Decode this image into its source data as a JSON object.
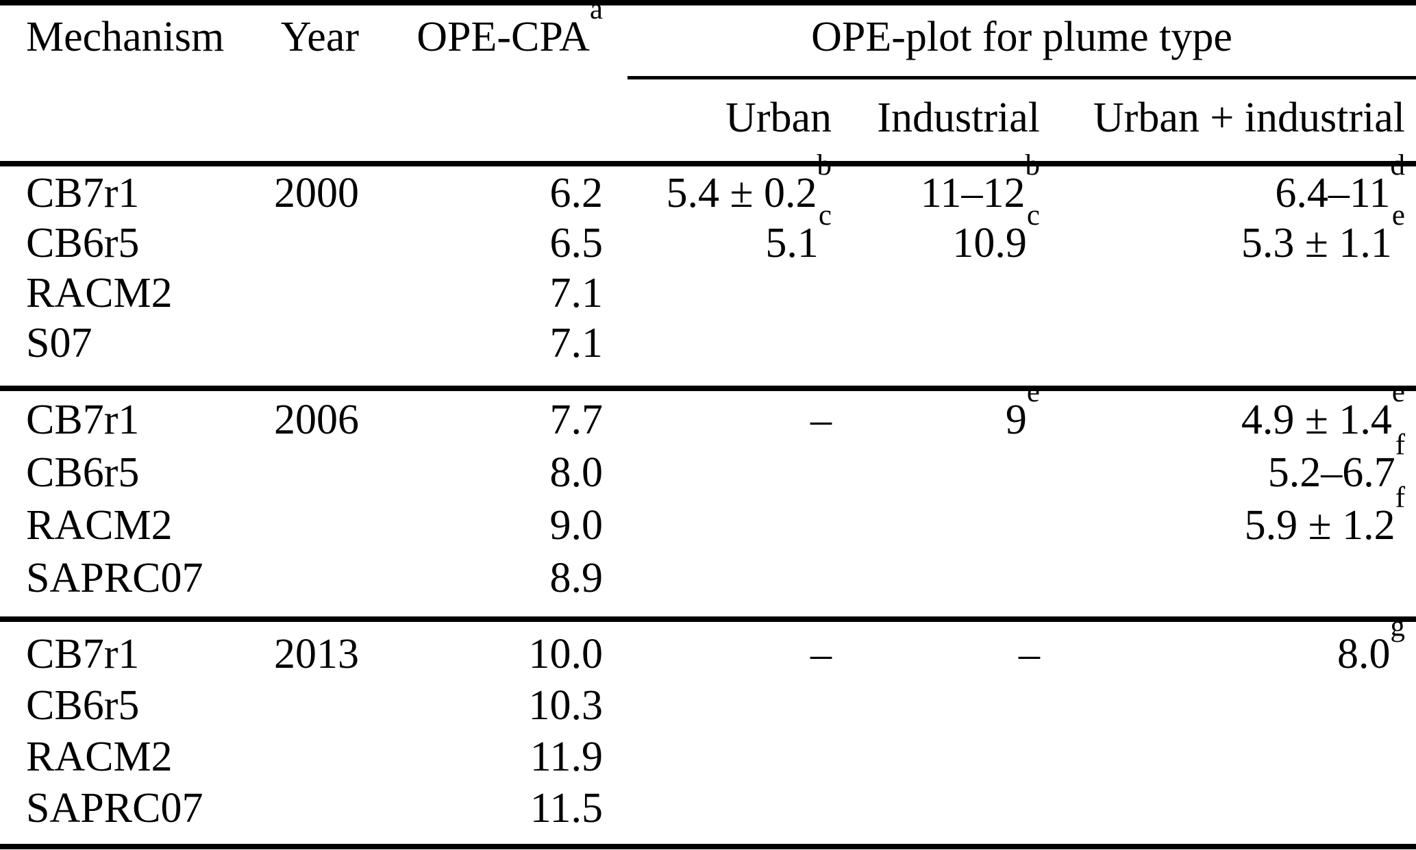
{
  "header": {
    "mechanism": "Mechanism",
    "year": "Year",
    "ope_cpa": {
      "text": "OPE-CPA",
      "sup": "a"
    },
    "plume_group": "OPE-plot for plume type",
    "sub_columns": [
      "Urban",
      "Industrial",
      "Urban + industrial"
    ]
  },
  "groups": [
    {
      "rows": [
        {
          "mechanism": "CB7r1",
          "year": "2000",
          "ope_cpa": "6.2",
          "urban": {
            "text": "5.4 ± 0.2",
            "sup": "b"
          },
          "industrial": {
            "text": "11–12",
            "sup": "b"
          },
          "urban_industrial": {
            "text": "6.4–11",
            "sup": "d"
          }
        },
        {
          "mechanism": "CB6r5",
          "ope_cpa": "6.5",
          "urban": {
            "text": "5.1",
            "sup": "c"
          },
          "industrial": {
            "text": "10.9",
            "sup": "c"
          },
          "urban_industrial": {
            "text": "5.3 ± 1.1",
            "sup": "e"
          }
        },
        {
          "mechanism": "RACM2",
          "ope_cpa": "7.1"
        },
        {
          "mechanism": "S07",
          "ope_cpa": "7.1"
        }
      ]
    },
    {
      "rows": [
        {
          "mechanism": "CB7r1",
          "year": "2006",
          "ope_cpa": "7.7",
          "urban": "–",
          "industrial": {
            "text": "9",
            "sup": "e"
          },
          "urban_industrial": {
            "text": "4.9 ± 1.4",
            "sup": "e"
          }
        },
        {
          "mechanism": "CB6r5",
          "ope_cpa": "8.0",
          "urban_industrial": {
            "text": "5.2–6.7",
            "sup": "f"
          }
        },
        {
          "mechanism": "RACM2",
          "ope_cpa": "9.0",
          "urban_industrial": {
            "text": "5.9 ± 1.2",
            "sup": "f"
          }
        },
        {
          "mechanism": "SAPRC07",
          "ope_cpa": "8.9"
        }
      ]
    },
    {
      "rows": [
        {
          "mechanism": "CB7r1",
          "year": "2013",
          "ope_cpa": "10.0",
          "urban": "–",
          "industrial": "–",
          "urban_industrial": {
            "text": "8.0",
            "sup": "g"
          }
        },
        {
          "mechanism": "CB6r5",
          "ope_cpa": "10.3"
        },
        {
          "mechanism": "RACM2",
          "ope_cpa": "11.9"
        },
        {
          "mechanism": "SAPRC07",
          "ope_cpa": "11.5"
        }
      ]
    }
  ]
}
